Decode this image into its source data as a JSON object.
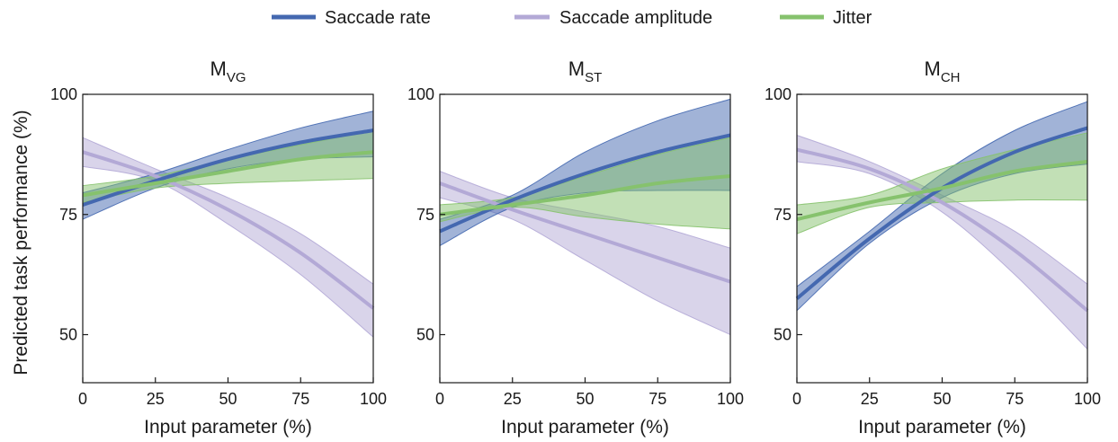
{
  "legend": {
    "items": [
      {
        "key": "rate",
        "label": "Saccade rate",
        "color": "#4468b0"
      },
      {
        "key": "amp",
        "label": "Saccade amplitude",
        "color": "#b3a9d6"
      },
      {
        "key": "jitter",
        "label": "Jitter",
        "color": "#86c26d"
      }
    ]
  },
  "ylabel": "Predicted task performance (%)",
  "xlabel": "Input parameter (%)",
  "chart_data": [
    {
      "type": "line",
      "title_main": "M",
      "title_sub": "VG",
      "xlabel": "Input parameter (%)",
      "ylabel": "Predicted task performance (%)",
      "xlim": [
        0,
        100
      ],
      "ylim": [
        40,
        100
      ],
      "xticks": [
        "0",
        "25",
        "50",
        "75",
        "100"
      ],
      "yticks": [
        "50",
        "75",
        "100"
      ],
      "x": [
        0,
        25,
        50,
        75,
        100
      ],
      "series": [
        {
          "name": "Saccade rate",
          "values": [
            77,
            82,
            86.5,
            90,
            92.5
          ],
          "lower": [
            74,
            80.5,
            84.5,
            86.5,
            87
          ],
          "upper": [
            79.5,
            83.5,
            88.5,
            93,
            96.5
          ]
        },
        {
          "name": "Saccade amplitude",
          "values": [
            88,
            83,
            76,
            67,
            55.5
          ],
          "lower": [
            85,
            82,
            73,
            62.5,
            49.5
          ],
          "upper": [
            91,
            84.5,
            78.5,
            71,
            60.5
          ]
        },
        {
          "name": "Jitter",
          "values": [
            79,
            81.5,
            84,
            86.5,
            88
          ],
          "lower": [
            77.5,
            80.5,
            81.5,
            82,
            82.5
          ],
          "upper": [
            81,
            83,
            86.5,
            89.5,
            92.5
          ]
        }
      ]
    },
    {
      "type": "line",
      "title_main": "M",
      "title_sub": "ST",
      "xlabel": "Input parameter (%)",
      "ylabel": "",
      "xlim": [
        0,
        100
      ],
      "ylim": [
        40,
        100
      ],
      "xticks": [
        "0",
        "25",
        "50",
        "75",
        "100"
      ],
      "yticks": [
        "50",
        "75",
        "100"
      ],
      "x": [
        0,
        25,
        50,
        75,
        100
      ],
      "series": [
        {
          "name": "Saccade rate",
          "values": [
            71.5,
            78,
            83.5,
            88,
            91.5
          ],
          "lower": [
            68.5,
            76.5,
            79.5,
            80,
            80
          ],
          "upper": [
            74,
            79,
            88,
            94.5,
            99
          ]
        },
        {
          "name": "Saccade amplitude",
          "values": [
            81.5,
            76,
            71,
            66,
            61
          ],
          "lower": [
            78.5,
            74,
            65.5,
            57,
            50
          ],
          "upper": [
            84,
            78.5,
            75.5,
            72.5,
            68
          ]
        },
        {
          "name": "Jitter",
          "values": [
            75,
            77,
            79,
            81.5,
            83
          ],
          "lower": [
            73.5,
            76.5,
            74.5,
            73,
            72
          ],
          "upper": [
            77,
            78.5,
            83,
            87.5,
            91
          ]
        }
      ]
    },
    {
      "type": "line",
      "title_main": "M",
      "title_sub": "CH",
      "xlabel": "Input parameter (%)",
      "ylabel": "",
      "xlim": [
        0,
        100
      ],
      "ylim": [
        40,
        100
      ],
      "xticks": [
        "0",
        "25",
        "50",
        "75",
        "100"
      ],
      "yticks": [
        "50",
        "75",
        "100"
      ],
      "x": [
        0,
        25,
        50,
        75,
        100
      ],
      "series": [
        {
          "name": "Saccade rate",
          "values": [
            57.5,
            70,
            80.5,
            88,
            93
          ],
          "lower": [
            55,
            69,
            78.5,
            83.5,
            85.5
          ],
          "upper": [
            60,
            71.5,
            83.5,
            92.5,
            98.5
          ]
        },
        {
          "name": "Saccade amplitude",
          "values": [
            88.5,
            84.5,
            77.5,
            67.5,
            55
          ],
          "lower": [
            86,
            83.5,
            75.5,
            62.5,
            47
          ],
          "upper": [
            91.5,
            86,
            79,
            71.5,
            60.5
          ]
        },
        {
          "name": "Jitter",
          "values": [
            74,
            77.5,
            80.5,
            84,
            86
          ],
          "lower": [
            71,
            76.5,
            77.5,
            78,
            78
          ],
          "upper": [
            77,
            79,
            84.5,
            88.5,
            92
          ]
        }
      ]
    }
  ]
}
